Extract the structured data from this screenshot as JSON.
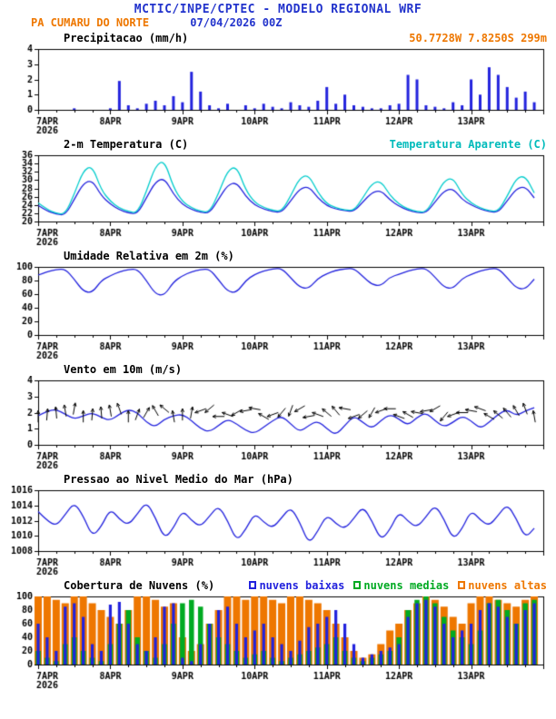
{
  "header": {
    "title": "MCTIC/INPE/CPTEC - MODELO REGIONAL WRF",
    "station": "PA CUMARU DO NORTE",
    "run": "07/04/2026 00Z",
    "location": "50.7728W 7.8250S 299m"
  },
  "colors": {
    "title_blue": "#2233cc",
    "series_blue": "#2222dd",
    "cyan": "#00cccc",
    "orange": "#ee7700",
    "green": "#00aa22",
    "axis_black": "#000000"
  },
  "x_axis": {
    "hours_total": 168,
    "tick_hours": [
      0,
      24,
      48,
      72,
      96,
      120,
      144
    ],
    "tick_labels": [
      "7APR",
      "8APR",
      "9APR",
      "10APR",
      "11APR",
      "12APR",
      "13APR"
    ],
    "year_label": "2026",
    "start_hour": 0,
    "step_hours": 3
  },
  "chart_data": [
    {
      "type": "bar",
      "title": "Precipitacao (mm/h)",
      "ylabel": "mm/h",
      "ylim": [
        0,
        4
      ],
      "yticks": [
        0,
        1,
        2,
        3,
        4
      ],
      "color": "#2222dd",
      "values": [
        0,
        0,
        0,
        0,
        0.1,
        0,
        0,
        0,
        0.1,
        1.9,
        0.3,
        0.1,
        0.4,
        0.6,
        0.3,
        0.9,
        0.5,
        2.5,
        1.2,
        0.3,
        0.1,
        0.4,
        0,
        0.3,
        0.1,
        0.4,
        0.2,
        0.1,
        0.5,
        0.3,
        0.2,
        0.6,
        1.5,
        0.4,
        1.0,
        0.3,
        0.2,
        0.1,
        0.1,
        0.3,
        0.4,
        2.3,
        2.0,
        0.3,
        0.2,
        0.1,
        0.5,
        0.3,
        2.0,
        1.0,
        2.8,
        2.3,
        1.5,
        0.8,
        1.2,
        0.5
      ]
    },
    {
      "type": "line",
      "title": "2-m Temperatura (C)",
      "legend_right": "Temperatura Aparente (C)",
      "ylim": [
        20,
        36
      ],
      "yticks": [
        20,
        22,
        24,
        26,
        28,
        30,
        32,
        34,
        36
      ],
      "series": [
        {
          "name": "2-m Temperatura (C)",
          "color": "#2222dd",
          "values": [
            23.9,
            22.5,
            21.8,
            21.5,
            25.3,
            29.2,
            30.0,
            26.2,
            24.2,
            22.8,
            22.1,
            21.8,
            25.7,
            29.6,
            30.5,
            26.6,
            24.1,
            22.9,
            22.2,
            22.0,
            25.4,
            28.8,
            29.5,
            26.1,
            24.0,
            23.0,
            22.4,
            22.2,
            25.0,
            27.9,
            28.5,
            25.7,
            23.8,
            23.0,
            22.6,
            22.4,
            24.7,
            27.0,
            27.5,
            25.2,
            23.7,
            22.7,
            22.2,
            22.0,
            24.7,
            27.4,
            28.0,
            25.3,
            24.0,
            23.0,
            22.4,
            22.2,
            25.0,
            27.9,
            28.5,
            25.7
          ]
        },
        {
          "name": "Temperatura Aparente (C)",
          "color": "#00cccc",
          "values": [
            24.5,
            22.9,
            22.0,
            21.7,
            26.6,
            32.3,
            33.5,
            27.6,
            24.9,
            23.2,
            22.4,
            22.0,
            27.2,
            33.5,
            34.8,
            28.2,
            24.8,
            23.3,
            22.5,
            22.2,
            26.8,
            32.3,
            33.4,
            27.6,
            24.6,
            23.4,
            22.7,
            22.4,
            26.2,
            30.6,
            31.3,
            27.0,
            24.3,
            23.3,
            22.8,
            22.6,
            25.7,
            29.2,
            29.8,
            26.3,
            24.2,
            23.0,
            22.4,
            22.2,
            25.8,
            29.8,
            30.6,
            26.5,
            24.5,
            23.3,
            22.6,
            22.4,
            26.1,
            30.4,
            31.1,
            26.9
          ]
        }
      ]
    },
    {
      "type": "line",
      "title": "Umidade Relativa em 2m (%)",
      "ylim": [
        0,
        100
      ],
      "yticks": [
        0,
        20,
        40,
        60,
        80,
        100
      ],
      "series": [
        {
          "name": "Umidade Relativa em 2m (%)",
          "color": "#2222dd",
          "values": [
            88,
            93,
            96,
            97,
            82,
            64,
            62,
            80,
            87,
            93,
            96,
            97,
            80,
            60,
            58,
            78,
            87,
            93,
            96,
            97,
            81,
            64,
            62,
            80,
            89,
            94,
            97,
            98,
            84,
            70,
            68,
            83,
            90,
            95,
            97,
            98,
            86,
            74,
            72,
            85,
            89,
            94,
            97,
            98,
            85,
            70,
            68,
            83,
            89,
            94,
            97,
            98,
            84,
            69,
            67,
            82
          ]
        }
      ]
    },
    {
      "type": "wind",
      "title": "Vento em 10m (m/s)",
      "ylim": [
        0,
        4
      ],
      "yticks": [
        0,
        1,
        2,
        3,
        4
      ],
      "series": [
        {
          "name": "Vento em 10m (m/s)",
          "color": "#2222dd",
          "values": [
            1.8,
            2.1,
            2.2,
            1.9,
            1.6,
            1.8,
            2.0,
            1.7,
            1.5,
            1.9,
            2.2,
            2.0,
            1.4,
            1.1,
            1.6,
            1.8,
            1.9,
            1.5,
            1.0,
            0.8,
            1.2,
            1.6,
            1.3,
            0.9,
            0.7,
            1.1,
            1.5,
            1.8,
            1.3,
            0.8,
            1.2,
            1.5,
            1.0,
            0.6,
            1.2,
            1.8,
            1.4,
            1.0,
            1.5,
            1.9,
            1.6,
            1.2,
            1.7,
            2.0,
            1.5,
            1.1,
            1.4,
            1.8,
            1.5,
            1.0,
            1.4,
            1.9,
            2.2,
            1.8,
            2.1,
            2.3
          ]
        }
      ],
      "arrow_anchor_value": 2.0,
      "directions_deg": [
        90,
        85,
        95,
        100,
        80,
        90,
        85,
        95,
        100,
        110,
        90,
        70,
        60,
        120,
        140,
        100,
        90,
        80,
        200,
        220,
        180,
        160,
        210,
        190,
        170,
        150,
        200,
        230,
        250,
        210,
        190,
        160,
        140,
        130,
        170,
        200,
        220,
        240,
        200,
        180,
        160,
        150,
        170,
        190,
        210,
        230,
        200,
        180,
        170,
        160,
        150,
        140,
        130,
        120,
        110,
        100
      ]
    },
    {
      "type": "line",
      "title": "Pressao ao Nivel Medio do Mar (hPa)",
      "ylim": [
        1008,
        1016
      ],
      "yticks": [
        1008,
        1010,
        1012,
        1014,
        1016
      ],
      "series": [
        {
          "name": "Pressao ao Nivel Medio do Mar (hPa)",
          "color": "#2222dd",
          "values": [
            1013.2,
            1012.0,
            1011.3,
            1012.8,
            1014.4,
            1012.6,
            1009.9,
            1011.2,
            1013.6,
            1012.2,
            1011.4,
            1012.9,
            1014.5,
            1012.4,
            1009.6,
            1011.0,
            1013.4,
            1012.0,
            1011.2,
            1012.6,
            1014.0,
            1012.0,
            1009.3,
            1010.8,
            1013.0,
            1011.8,
            1011.0,
            1012.4,
            1013.8,
            1011.8,
            1008.9,
            1010.6,
            1012.8,
            1011.6,
            1010.9,
            1012.3,
            1013.9,
            1012.0,
            1009.4,
            1010.8,
            1013.2,
            1011.9,
            1011.1,
            1012.5,
            1014.1,
            1012.2,
            1009.5,
            1010.9,
            1013.4,
            1012.1,
            1011.3,
            1012.7,
            1014.2,
            1012.3,
            1009.7,
            1011.0
          ]
        }
      ]
    },
    {
      "type": "bar-multi",
      "title": "Cobertura de Nuvens (%)",
      "ylim": [
        0,
        100
      ],
      "yticks": [
        0,
        20,
        40,
        60,
        80,
        100
      ],
      "legend": [
        {
          "label": "nuvens baixas",
          "color": "#2222dd"
        },
        {
          "label": "nuvens medias",
          "color": "#00aa22"
        },
        {
          "label": "nuvens altas",
          "color": "#ee7700"
        }
      ],
      "series": [
        {
          "name": "nuvens baixas",
          "color": "#2222dd",
          "values": [
            60,
            40,
            20,
            85,
            90,
            70,
            30,
            20,
            88,
            92,
            60,
            30,
            20,
            40,
            85,
            90,
            10,
            5,
            30,
            60,
            80,
            85,
            60,
            40,
            50,
            60,
            40,
            30,
            20,
            35,
            55,
            60,
            70,
            80,
            60,
            30,
            10,
            15,
            20,
            25,
            30,
            70,
            90,
            95,
            85,
            60,
            40,
            50,
            60,
            80,
            90,
            85,
            70,
            60,
            80,
            90
          ]
        },
        {
          "name": "nuvens medias",
          "color": "#00aa22",
          "values": [
            20,
            10,
            5,
            30,
            40,
            20,
            10,
            5,
            30,
            60,
            80,
            40,
            20,
            10,
            30,
            60,
            90,
            95,
            85,
            60,
            40,
            30,
            20,
            10,
            15,
            20,
            10,
            5,
            10,
            15,
            20,
            25,
            30,
            40,
            20,
            10,
            5,
            10,
            15,
            20,
            40,
            80,
            95,
            100,
            90,
            70,
            50,
            40,
            30,
            50,
            90,
            95,
            80,
            60,
            90,
            95
          ]
        },
        {
          "name": "nuvens altas",
          "color": "#ee7700",
          "values": [
            100,
            100,
            95,
            90,
            100,
            100,
            90,
            80,
            70,
            60,
            80,
            100,
            100,
            95,
            85,
            90,
            40,
            20,
            30,
            60,
            80,
            100,
            100,
            95,
            100,
            100,
            95,
            90,
            100,
            100,
            95,
            90,
            80,
            60,
            40,
            20,
            10,
            15,
            30,
            50,
            60,
            80,
            90,
            100,
            95,
            85,
            70,
            60,
            90,
            100,
            100,
            95,
            90,
            85,
            95,
            100
          ]
        }
      ]
    }
  ]
}
